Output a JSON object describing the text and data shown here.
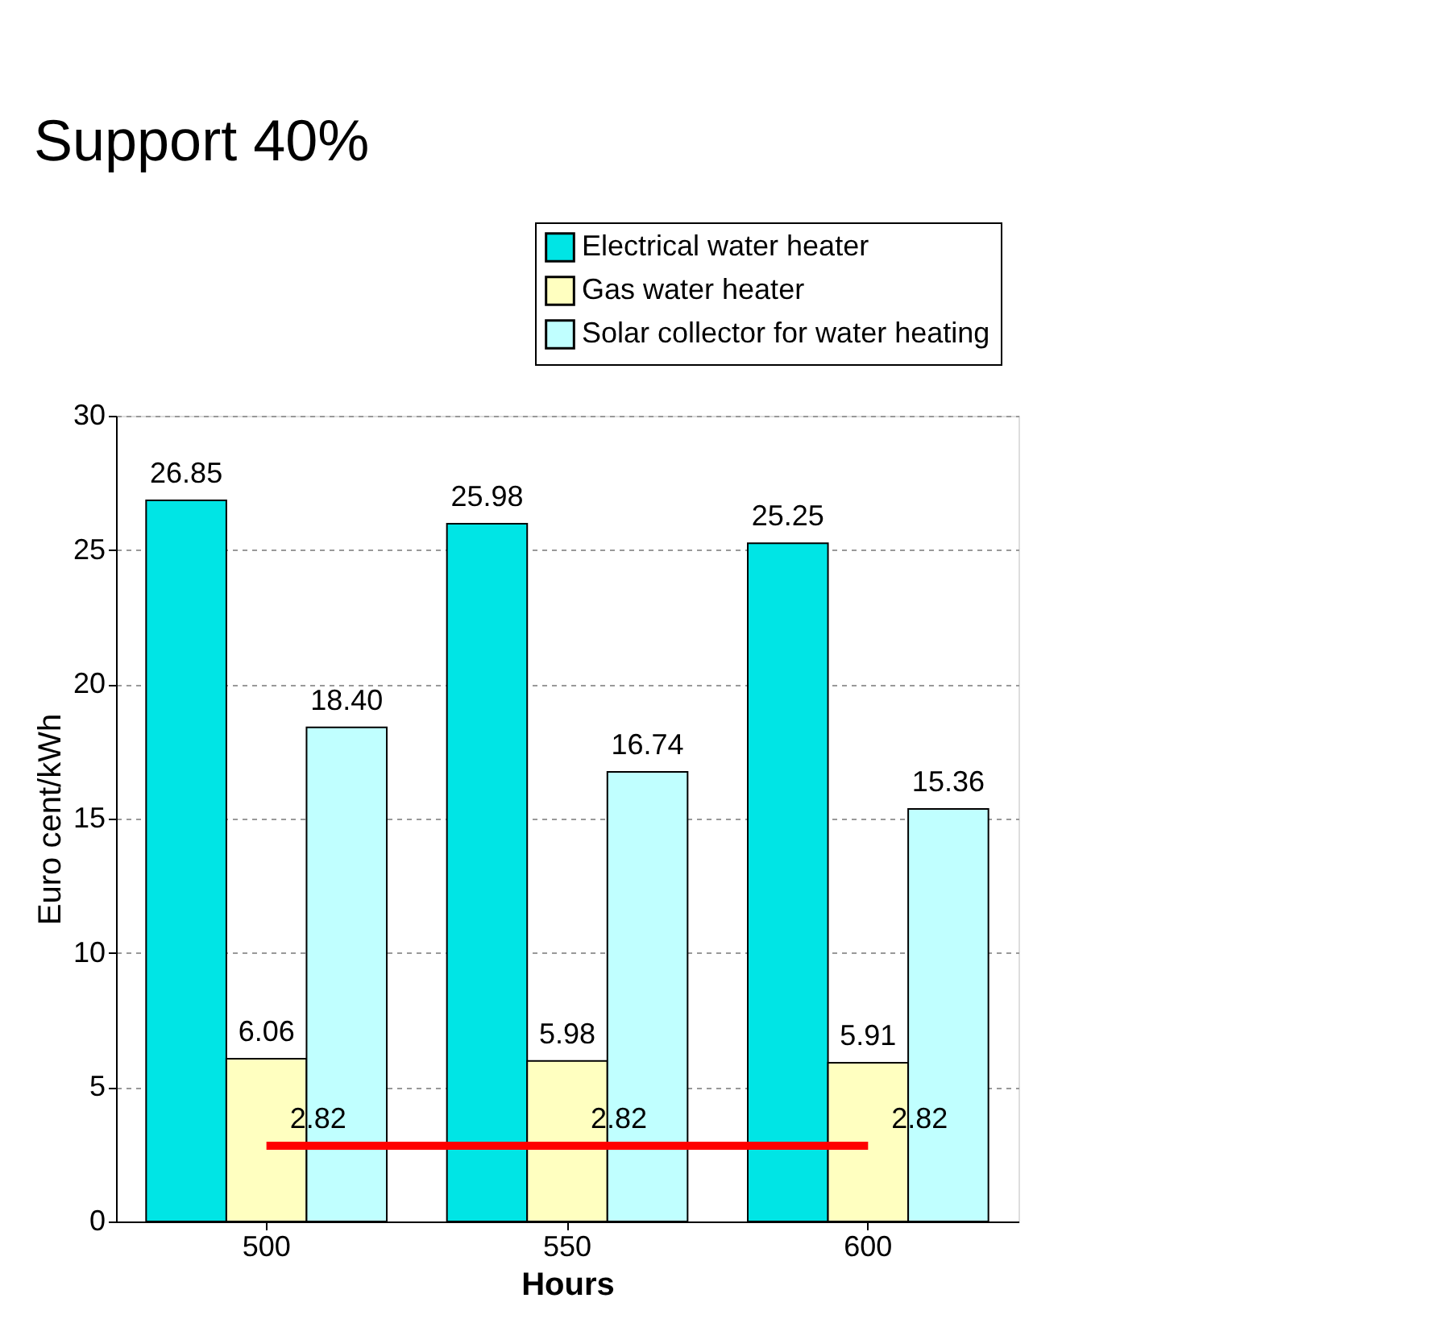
{
  "chart_data": {
    "type": "bar",
    "title": "Support 40%",
    "xlabel": "Hours",
    "ylabel": "Euro cent/kWh",
    "categories": [
      "500",
      "550",
      "600"
    ],
    "series": [
      {
        "name": "Electrical water heater",
        "color": "#00e5e5",
        "values": [
          26.85,
          25.98,
          25.25
        ],
        "value_labels": [
          "26.85",
          "25.98",
          "25.25"
        ]
      },
      {
        "name": "Gas water heater",
        "color": "#ffffc0",
        "values": [
          6.06,
          5.98,
          5.91
        ],
        "value_labels": [
          "6.06",
          "5.98",
          "5.91"
        ]
      },
      {
        "name": "Solar collector for water heating",
        "color": "#c0ffff",
        "values": [
          18.4,
          16.74,
          15.36
        ],
        "value_labels": [
          "18.40",
          "16.74",
          "15.36"
        ]
      },
      {
        "type": "line",
        "color": "#ff0000",
        "values": [
          2.82,
          2.82,
          2.82
        ],
        "value_labels": [
          "2.82",
          "2.82",
          "2.82"
        ]
      }
    ],
    "ylim": [
      0,
      30
    ],
    "yticks": [
      0,
      5,
      10,
      15,
      20,
      25,
      30
    ],
    "grid": "y",
    "legend": "top right"
  }
}
